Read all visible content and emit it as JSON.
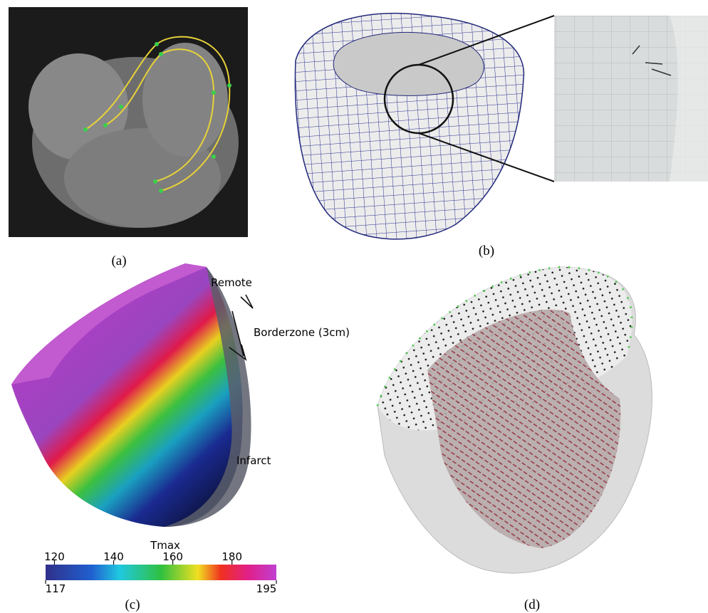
{
  "panels": [
    {
      "label": "(a)"
    },
    {
      "label": "(b)"
    },
    {
      "label": "(c)",
      "annotations": [
        "Remote",
        "Borderzone (3cm)",
        "Infarct"
      ],
      "colorbar": {
        "title": "Tmax",
        "lim": [
          117,
          195
        ],
        "ticks": [
          120,
          140,
          160,
          180
        ]
      }
    },
    {
      "label": "(d)"
    }
  ]
}
